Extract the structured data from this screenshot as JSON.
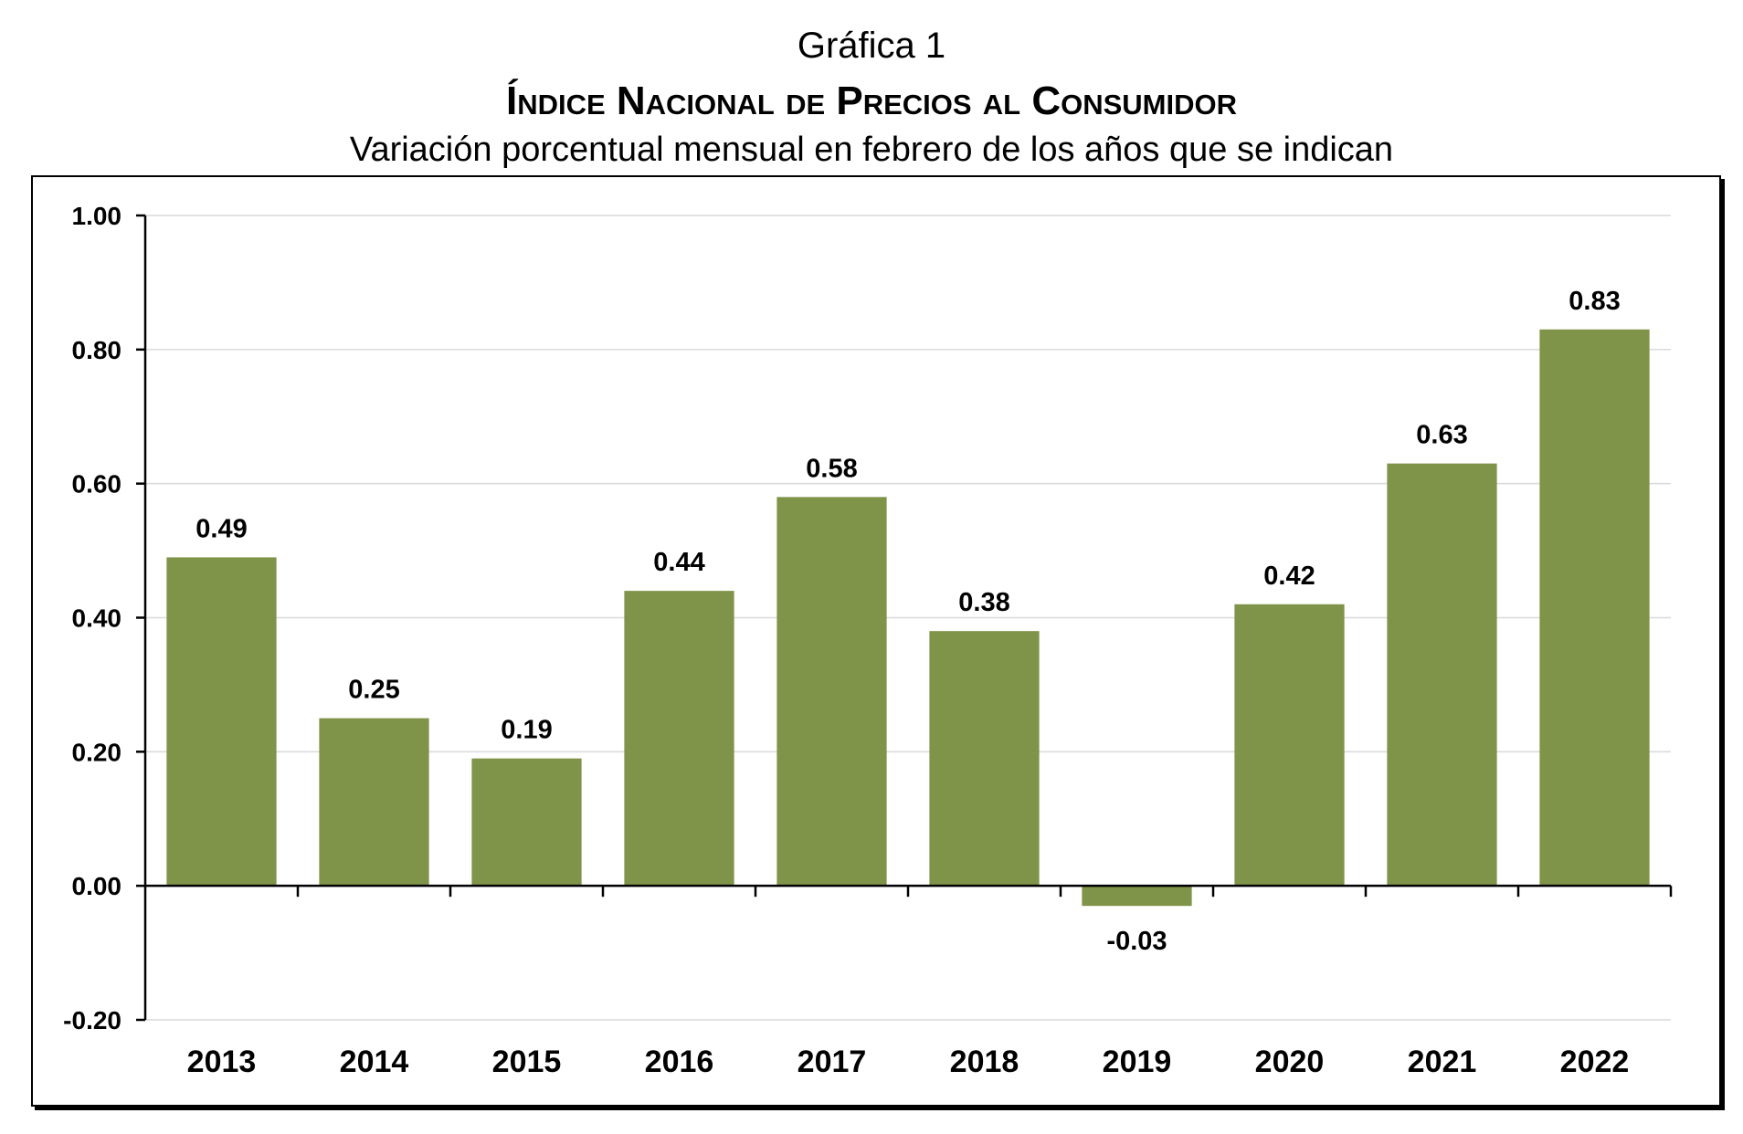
{
  "chart_data": {
    "type": "bar",
    "title": "Gráfica 1",
    "subtitle_bold": "Índice Nacional de Precios al Consumidor",
    "subtitle": "Variación porcentual mensual en febrero de los años que se indican",
    "categories": [
      "2013",
      "2014",
      "2015",
      "2016",
      "2017",
      "2018",
      "2019",
      "2020",
      "2021",
      "2022"
    ],
    "values": [
      0.49,
      0.25,
      0.19,
      0.44,
      0.58,
      0.38,
      -0.03,
      0.42,
      0.63,
      0.83
    ],
    "data_labels": [
      "0.49",
      "0.25",
      "0.19",
      "0.44",
      "0.58",
      "0.38",
      "-0.03",
      "0.42",
      "0.63",
      "0.83"
    ],
    "yticks": [
      "1.00",
      "0.80",
      "0.60",
      "0.40",
      "0.20",
      "0.00",
      "-0.20"
    ],
    "ylim": [
      -0.2,
      1.0
    ],
    "xlabel": "",
    "ylabel": "",
    "grid": true,
    "bar_color": "#7f9349",
    "grid_color": "#d9d9d9"
  }
}
